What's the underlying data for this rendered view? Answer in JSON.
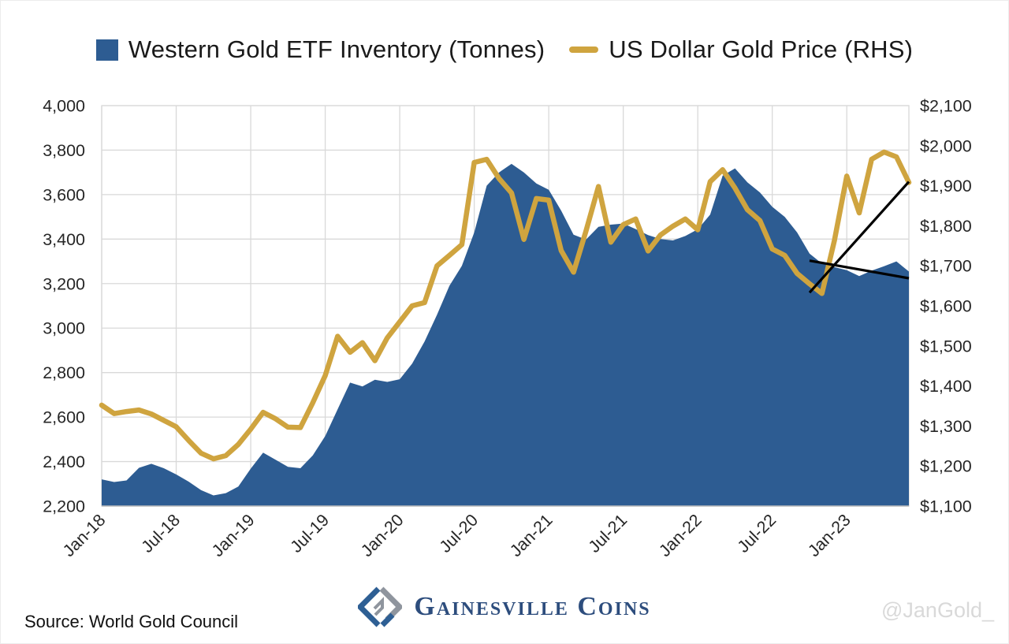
{
  "legend": {
    "etf_label": "Western Gold ETF Inventory (Tonnes)",
    "gold_label": "US Dollar Gold Price (RHS)"
  },
  "footer": {
    "source": "Source: World Gold Council",
    "brand": "Gainesville Coins",
    "watermark": "@JanGold_"
  },
  "colors": {
    "etf_fill": "#2d5c92",
    "gold_line": "#cfa43f",
    "grid": "#d9d9d9",
    "axis_line": "#bfbfbf",
    "axis_text": "#262626",
    "annotation": "#000000",
    "brand_navy": "#2d4d7d",
    "brand_gray": "#8f959e",
    "watermark_gray": "#d9d9d9"
  },
  "chart_data": {
    "type": "area+line combo",
    "title": "",
    "grid": "on",
    "legend_position": "top-center",
    "months": [
      "Jan-18",
      "Feb-18",
      "Mar-18",
      "Apr-18",
      "May-18",
      "Jun-18",
      "Jul-18",
      "Aug-18",
      "Sep-18",
      "Oct-18",
      "Nov-18",
      "Dec-18",
      "Jan-19",
      "Feb-19",
      "Mar-19",
      "Apr-19",
      "May-19",
      "Jun-19",
      "Jul-19",
      "Aug-19",
      "Sep-19",
      "Oct-19",
      "Nov-19",
      "Dec-19",
      "Jan-20",
      "Feb-20",
      "Mar-20",
      "Apr-20",
      "May-20",
      "Jun-20",
      "Jul-20",
      "Aug-20",
      "Sep-20",
      "Oct-20",
      "Nov-20",
      "Dec-20",
      "Jan-21",
      "Feb-21",
      "Mar-21",
      "Apr-21",
      "May-21",
      "Jun-21",
      "Jul-21",
      "Aug-21",
      "Sep-21",
      "Oct-21",
      "Nov-21",
      "Dec-21",
      "Jan-22",
      "Feb-22",
      "Mar-22",
      "Apr-22",
      "May-22",
      "Jun-22",
      "Jul-22",
      "Aug-22",
      "Sep-22",
      "Oct-22",
      "Nov-22",
      "Dec-22",
      "Jan-23",
      "Feb-23",
      "Mar-23",
      "Apr-23",
      "May-23",
      "Jun-23"
    ],
    "x_tick_labels": [
      "Jan-18",
      "Jul-18",
      "Jan-19",
      "Jul-19",
      "Jan-20",
      "Jul-20",
      "Jan-21",
      "Jul-21",
      "Jan-22",
      "Jul-22",
      "Jan-23"
    ],
    "x_tick_month_indices": [
      0,
      6,
      12,
      18,
      24,
      30,
      36,
      42,
      48,
      54,
      60
    ],
    "series": [
      {
        "name": "Western Gold ETF Inventory (Tonnes)",
        "type": "area",
        "axis": "left",
        "values": [
          2320,
          2308,
          2315,
          2372,
          2390,
          2370,
          2342,
          2310,
          2272,
          2248,
          2258,
          2288,
          2368,
          2440,
          2408,
          2376,
          2370,
          2428,
          2515,
          2635,
          2755,
          2738,
          2768,
          2758,
          2770,
          2840,
          2940,
          3060,
          3190,
          3280,
          3430,
          3640,
          3700,
          3738,
          3700,
          3650,
          3622,
          3528,
          3420,
          3398,
          3455,
          3465,
          3470,
          3445,
          3418,
          3400,
          3394,
          3414,
          3444,
          3510,
          3685,
          3718,
          3655,
          3610,
          3545,
          3500,
          3430,
          3335,
          3290,
          3274,
          3260,
          3234,
          3258,
          3278,
          3300,
          3254
        ]
      },
      {
        "name": "US Dollar Gold Price (RHS)",
        "type": "line",
        "axis": "right",
        "values": [
          1352,
          1331,
          1336,
          1340,
          1330,
          1314,
          1298,
          1264,
          1232,
          1218,
          1226,
          1254,
          1292,
          1334,
          1318,
          1297,
          1296,
          1358,
          1426,
          1524,
          1484,
          1508,
          1463,
          1520,
          1560,
          1600,
          1608,
          1700,
          1726,
          1753,
          1958,
          1966,
          1918,
          1882,
          1766,
          1868,
          1864,
          1738,
          1684,
          1787,
          1898,
          1759,
          1803,
          1817,
          1737,
          1777,
          1799,
          1817,
          1790,
          1910,
          1940,
          1894,
          1840,
          1813,
          1742,
          1726,
          1681,
          1655,
          1631,
          1763,
          1924,
          1832,
          1966,
          1984,
          1972,
          1908
        ]
      }
    ],
    "left_axis": {
      "min": 2200,
      "max": 4000,
      "step": 200,
      "labels": [
        "4,000",
        "3,800",
        "3,600",
        "3,400",
        "3,200",
        "3,000",
        "2,800",
        "2,600",
        "2,400",
        "2,200"
      ],
      "label_values": [
        4000,
        3800,
        3600,
        3400,
        3200,
        3000,
        2800,
        2600,
        2400,
        2200
      ]
    },
    "right_axis": {
      "min": 1100,
      "max": 2100,
      "step": 100,
      "labels": [
        "$2,100",
        "$2,000",
        "$1,900",
        "$1,800",
        "$1,700",
        "$1,600",
        "$1,500",
        "$1,400",
        "$1,300",
        "$1,200",
        "$1,100"
      ],
      "label_values": [
        2100,
        2000,
        1900,
        1800,
        1700,
        1600,
        1500,
        1400,
        1300,
        1200,
        1100
      ]
    },
    "annotations": [
      {
        "name": "gold-trend-line",
        "axis": "right",
        "from_month_index": 57,
        "from_value": 1633,
        "to_month_index": 65,
        "to_value": 1910
      },
      {
        "name": "etf-trend-line",
        "axis": "left",
        "from_month_index": 57,
        "from_value": 3303,
        "to_month_index": 65,
        "to_value": 3224
      }
    ]
  }
}
